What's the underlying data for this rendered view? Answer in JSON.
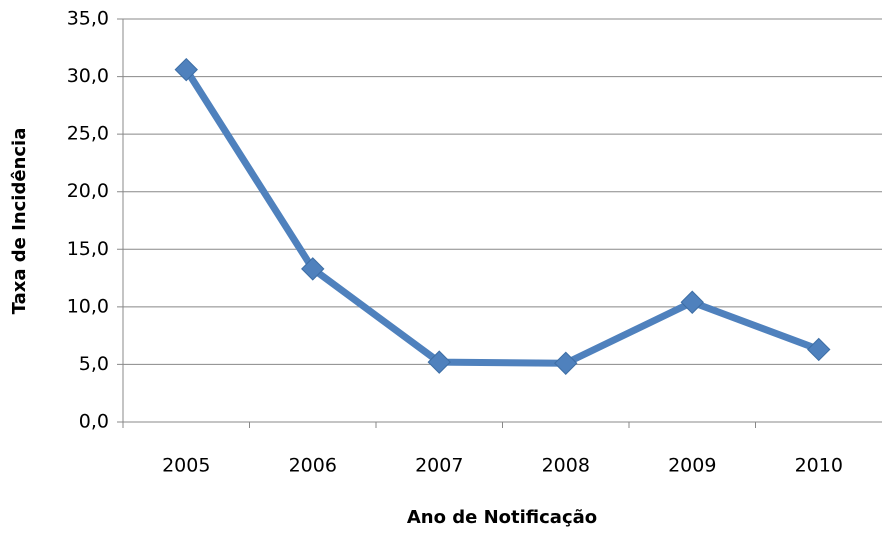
{
  "chart_data": {
    "type": "line",
    "x_label": "Ano de Notificação",
    "y_label": "Taxa de Incidência",
    "categories": [
      "2005",
      "2006",
      "2007",
      "2008",
      "2009",
      "2010"
    ],
    "series": [
      {
        "name": "Taxa de Incidência",
        "color": "#4f81bd",
        "values": [
          30.6,
          13.3,
          5.2,
          5.1,
          10.4,
          6.3
        ]
      }
    ],
    "ylim": [
      0,
      35
    ],
    "yticks": [
      {
        "value": 0,
        "label": "0,0"
      },
      {
        "value": 5,
        "label": "5,0"
      },
      {
        "value": 10,
        "label": "10,0"
      },
      {
        "value": 15,
        "label": "15,0"
      },
      {
        "value": 20,
        "label": "20,0"
      },
      {
        "value": 25,
        "label": "25,0"
      },
      {
        "value": 30,
        "label": "30,0"
      },
      {
        "value": 35,
        "label": "35,0"
      }
    ],
    "grid": true
  }
}
